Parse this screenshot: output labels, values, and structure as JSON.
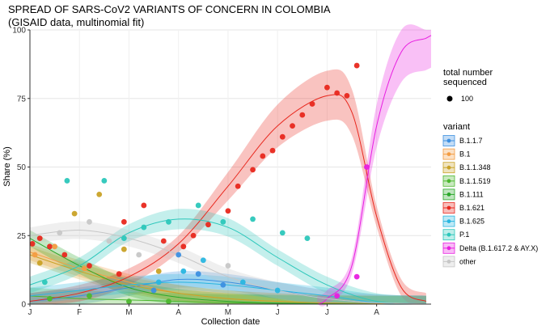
{
  "chart_data": {
    "type": "line",
    "title": "SPREAD OF SARS-CoV2 VARIANTS OF CONCERN IN COLOMBIA",
    "subtitle": "(GISAID data, multinomial fit)",
    "xlabel": "Collection date",
    "ylabel": "Share (%)",
    "x_ticks": [
      "J",
      "F",
      "M",
      "A",
      "M",
      "J",
      "J",
      "A"
    ],
    "x_tick_months": [
      0,
      1,
      2,
      3,
      4,
      5,
      6,
      7
    ],
    "xlim": [
      0,
      8.1
    ],
    "ylim": [
      0,
      100
    ],
    "y_ticks": [
      0,
      25,
      50,
      75,
      100
    ],
    "grid": true,
    "size_legend": {
      "title": "total number sequenced",
      "entries": [
        100
      ]
    },
    "legend_title": "variant",
    "legend_position": "right",
    "series": [
      {
        "name": "B.1.1.7",
        "color": "#3d8fe0",
        "x": [
          0,
          1,
          2,
          3,
          4,
          5,
          6,
          7,
          8
        ],
        "y": [
          1,
          3,
          6,
          9,
          8,
          5,
          2,
          0.5,
          0.1
        ]
      },
      {
        "name": "B.1",
        "color": "#f39c42",
        "x": [
          0,
          1,
          2,
          3,
          4,
          5,
          6,
          7,
          8
        ],
        "y": [
          19,
          13,
          8,
          4,
          2,
          1,
          0.4,
          0.1,
          0
        ]
      },
      {
        "name": "B.1.1.348",
        "color": "#c9a227",
        "x": [
          0,
          1,
          2,
          3,
          4,
          5,
          6,
          7,
          8
        ],
        "y": [
          18,
          12,
          7,
          4,
          2,
          1,
          0.4,
          0.1,
          0
        ]
      },
      {
        "name": "B.1.1.519",
        "color": "#4cb72e",
        "x": [
          0,
          1,
          2,
          3,
          4,
          5,
          6,
          7,
          8
        ],
        "y": [
          3,
          2,
          1.5,
          1,
          0.5,
          0.3,
          0.1,
          0,
          0
        ]
      },
      {
        "name": "B.1.111",
        "color": "#2aa82a",
        "x": [
          0,
          1,
          2,
          3,
          4,
          5,
          6,
          7,
          8
        ],
        "y": [
          24,
          14,
          6,
          2.5,
          1,
          0.4,
          0.1,
          0,
          0
        ]
      },
      {
        "name": "B.1.621",
        "color": "#e8281e",
        "x": [
          0,
          1,
          2,
          3,
          4,
          5,
          6,
          6.5,
          7,
          7.5,
          8
        ],
        "y": [
          1,
          4,
          10,
          22,
          43,
          65,
          76,
          70,
          32,
          6,
          1
        ]
      },
      {
        "name": "B.1.625",
        "color": "#29b6e0",
        "x": [
          0,
          1,
          2,
          3,
          4,
          5,
          6,
          7,
          8
        ],
        "y": [
          3,
          5,
          7,
          8,
          7,
          5,
          3,
          0.6,
          0.1
        ]
      },
      {
        "name": "P.1",
        "color": "#2cc7bb",
        "x": [
          0,
          1,
          2,
          3,
          4,
          5,
          6,
          7,
          8
        ],
        "y": [
          7,
          14,
          26,
          31,
          28,
          17,
          7,
          1,
          0.1
        ]
      },
      {
        "name": "Delta (B.1.617.2 & AY.X)",
        "color": "#e81ee0",
        "x": [
          5.8,
          6,
          6.5,
          7,
          7.5,
          8,
          8.1
        ],
        "y": [
          0,
          2,
          14,
          65,
          92,
          97,
          98
        ]
      },
      {
        "name": "other",
        "color": "#c7c7c7",
        "x": [
          0,
          1,
          2,
          3,
          4,
          5,
          6,
          7,
          8
        ],
        "y": [
          25,
          27,
          24,
          18,
          10,
          5,
          2,
          0.5,
          0.1
        ]
      }
    ],
    "points": [
      {
        "s": 5,
        "x": 0.05,
        "y": 22
      },
      {
        "s": 5,
        "x": 0.2,
        "y": 24
      },
      {
        "s": 5,
        "x": 0.4,
        "y": 21
      },
      {
        "s": 5,
        "x": 0.7,
        "y": 18
      },
      {
        "s": 5,
        "x": 1.2,
        "y": 14
      },
      {
        "s": 5,
        "x": 1.8,
        "y": 11
      },
      {
        "s": 1,
        "x": 0.1,
        "y": 18
      },
      {
        "s": 1,
        "x": 0.5,
        "y": 21
      },
      {
        "s": 1,
        "x": 1.1,
        "y": 13
      },
      {
        "s": 2,
        "x": 0.2,
        "y": 15
      },
      {
        "s": 2,
        "x": 0.9,
        "y": 33
      },
      {
        "s": 2,
        "x": 1.4,
        "y": 40
      },
      {
        "s": 2,
        "x": 1.9,
        "y": 20
      },
      {
        "s": 2,
        "x": 2.6,
        "y": 12
      },
      {
        "s": 7,
        "x": 0.3,
        "y": 8
      },
      {
        "s": 7,
        "x": 0.75,
        "y": 45
      },
      {
        "s": 7,
        "x": 1.5,
        "y": 45
      },
      {
        "s": 7,
        "x": 1.9,
        "y": 24
      },
      {
        "s": 7,
        "x": 2.3,
        "y": 28
      },
      {
        "s": 7,
        "x": 2.8,
        "y": 30
      },
      {
        "s": 7,
        "x": 3.4,
        "y": 36
      },
      {
        "s": 7,
        "x": 3.9,
        "y": 30
      },
      {
        "s": 7,
        "x": 4.5,
        "y": 31
      },
      {
        "s": 7,
        "x": 5.1,
        "y": 26
      },
      {
        "s": 7,
        "x": 5.6,
        "y": 24
      },
      {
        "s": 6,
        "x": 2.6,
        "y": 8
      },
      {
        "s": 6,
        "x": 3.1,
        "y": 12
      },
      {
        "s": 6,
        "x": 3.5,
        "y": 16
      },
      {
        "s": 6,
        "x": 4.3,
        "y": 8
      },
      {
        "s": 6,
        "x": 5.0,
        "y": 5
      },
      {
        "s": 0,
        "x": 2.5,
        "y": 5
      },
      {
        "s": 0,
        "x": 3.0,
        "y": 18
      },
      {
        "s": 0,
        "x": 3.4,
        "y": 11
      },
      {
        "s": 0,
        "x": 3.9,
        "y": 7
      },
      {
        "s": 5,
        "x": 1.9,
        "y": 30
      },
      {
        "s": 5,
        "x": 2.3,
        "y": 36
      },
      {
        "s": 5,
        "x": 2.7,
        "y": 23
      },
      {
        "s": 5,
        "x": 3.1,
        "y": 21
      },
      {
        "s": 5,
        "x": 3.3,
        "y": 25
      },
      {
        "s": 5,
        "x": 3.6,
        "y": 29
      },
      {
        "s": 5,
        "x": 4.0,
        "y": 34
      },
      {
        "s": 5,
        "x": 4.2,
        "y": 43
      },
      {
        "s": 5,
        "x": 4.5,
        "y": 49
      },
      {
        "s": 5,
        "x": 4.7,
        "y": 54
      },
      {
        "s": 5,
        "x": 4.9,
        "y": 56
      },
      {
        "s": 5,
        "x": 5.1,
        "y": 61
      },
      {
        "s": 5,
        "x": 5.3,
        "y": 65
      },
      {
        "s": 5,
        "x": 5.5,
        "y": 69
      },
      {
        "s": 5,
        "x": 5.7,
        "y": 73
      },
      {
        "s": 5,
        "x": 6.0,
        "y": 79
      },
      {
        "s": 5,
        "x": 6.2,
        "y": 77
      },
      {
        "s": 5,
        "x": 6.4,
        "y": 76
      },
      {
        "s": 5,
        "x": 6.6,
        "y": 87
      },
      {
        "s": 8,
        "x": 6.6,
        "y": 10
      },
      {
        "s": 8,
        "x": 6.8,
        "y": 50
      },
      {
        "s": 8,
        "x": 6.2,
        "y": 3
      },
      {
        "s": 9,
        "x": 1.2,
        "y": 30
      },
      {
        "s": 9,
        "x": 0.6,
        "y": 26
      },
      {
        "s": 9,
        "x": 1.6,
        "y": 23
      },
      {
        "s": 9,
        "x": 2.2,
        "y": 18
      },
      {
        "s": 9,
        "x": 4.0,
        "y": 14
      },
      {
        "s": 3,
        "x": 0.4,
        "y": 2
      },
      {
        "s": 3,
        "x": 1.2,
        "y": 3
      },
      {
        "s": 3,
        "x": 2.0,
        "y": 1
      },
      {
        "s": 3,
        "x": 2.8,
        "y": 1
      }
    ]
  }
}
